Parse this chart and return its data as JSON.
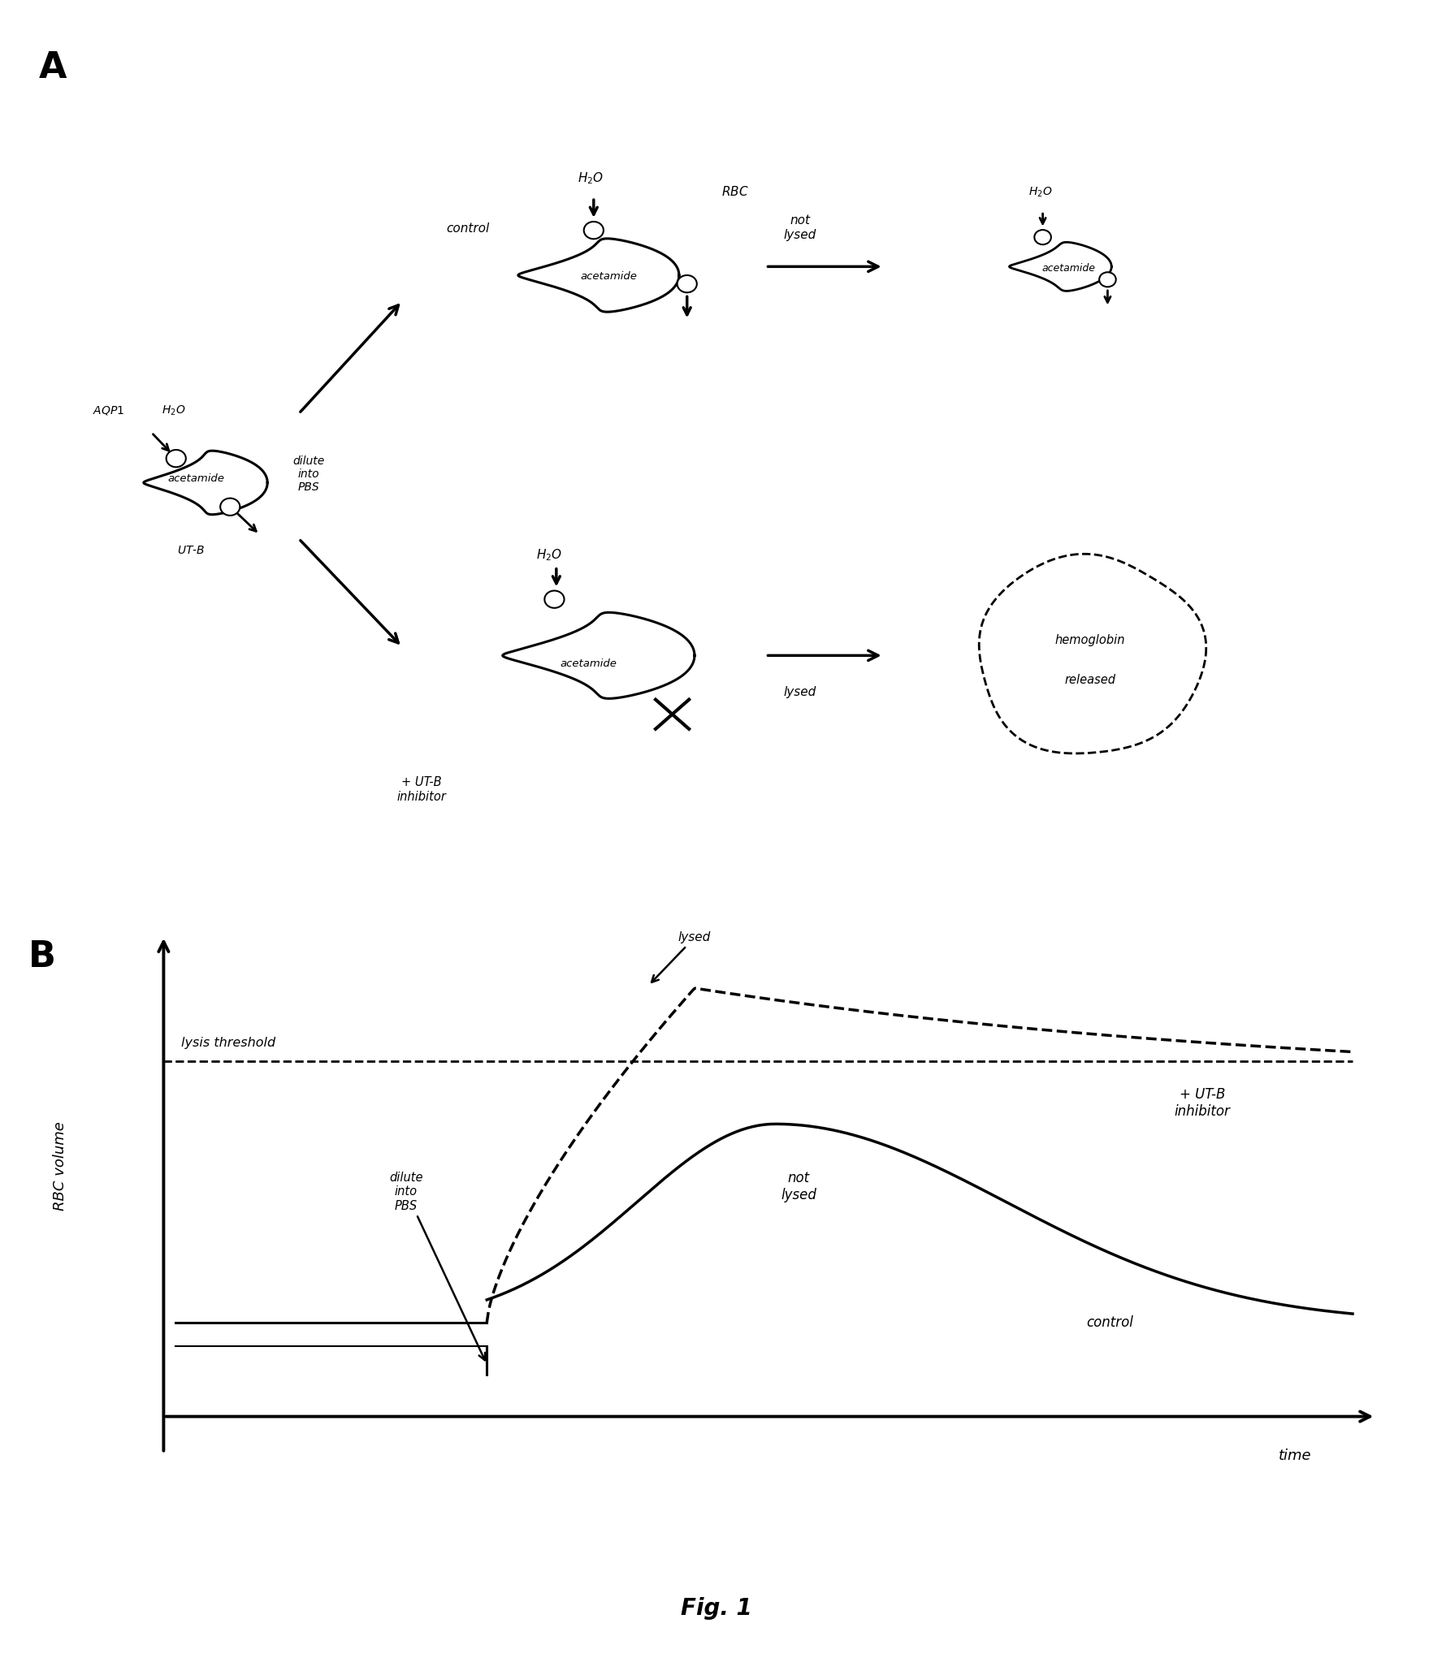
{
  "fig_label": "Fig. 1",
  "panel_A_label": "A",
  "panel_B_label": "B",
  "panel_B": {
    "xlabel": "time",
    "ylabel": "RBC volume",
    "lysis_threshold_label": "lysis threshold",
    "control_label": "control",
    "inhibitor_label": "+ UT-B\ninhibitor",
    "lysed_label": "lysed",
    "not_lysed_label": "not\nlysed",
    "dilute_label": "dilute\ninto\nPBS"
  }
}
